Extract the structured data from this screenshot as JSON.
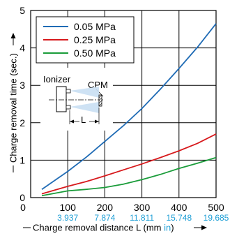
{
  "chart_data": {
    "type": "line",
    "xlabel": "Charge removal distance L (mm in)",
    "xlabel_main": "Charge removal distance L (mm ",
    "xlabel_unit_in": "in",
    "xlabel_close": ")",
    "ylabel": "Charge removal time (sec.)",
    "xlim": [
      0,
      500
    ],
    "ylim": [
      0,
      5
    ],
    "x_ticks": [
      100,
      200,
      300,
      400,
      500
    ],
    "x_ticks_in": [
      "3.937",
      "7.874",
      "11.811",
      "15.748",
      "19.685"
    ],
    "y_ticks": [
      0,
      1,
      2,
      3,
      4,
      5
    ],
    "grid": true,
    "legend_position": "top-left",
    "series": [
      {
        "name": "0.05 MPa",
        "color": "#1f6bb5",
        "x": [
          30,
          100,
          150,
          200,
          250,
          300,
          350,
          400,
          450,
          500
        ],
        "y": [
          0.22,
          0.7,
          1.08,
          1.5,
          1.92,
          2.38,
          2.9,
          3.45,
          4.02,
          4.65
        ]
      },
      {
        "name": "0.25 MPa",
        "color": "#d7191c",
        "x": [
          30,
          100,
          150,
          200,
          250,
          300,
          350,
          400,
          450,
          500
        ],
        "y": [
          0.1,
          0.3,
          0.43,
          0.58,
          0.74,
          0.9,
          1.07,
          1.25,
          1.45,
          1.7
        ]
      },
      {
        "name": "0.50 MPa",
        "color": "#1a9c3a",
        "x": [
          30,
          100,
          150,
          200,
          250,
          300,
          350,
          400,
          450,
          500
        ],
        "y": [
          0.05,
          0.18,
          0.22,
          0.27,
          0.36,
          0.48,
          0.62,
          0.78,
          0.92,
          1.07
        ]
      }
    ],
    "inset": {
      "ionizer_label": "Ionizer",
      "cpm_label": "CPM",
      "distance_label": "L"
    }
  }
}
